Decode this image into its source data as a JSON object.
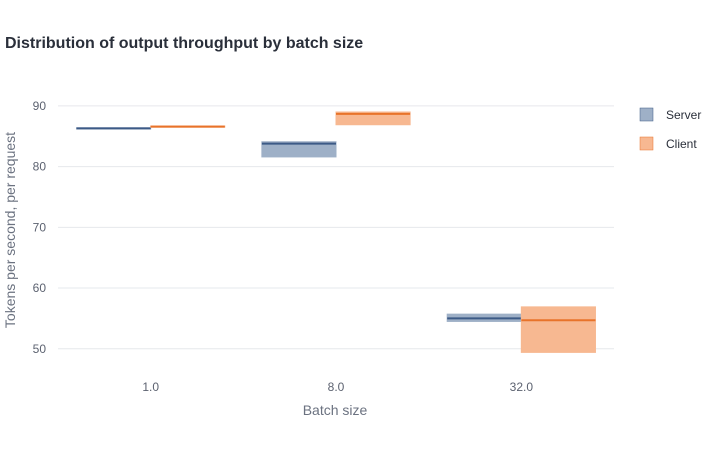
{
  "chart_data": {
    "type": "box",
    "title": "Distribution of output throughput by batch size",
    "xlabel": "Batch size",
    "ylabel": "Tokens per second, per request",
    "categories": [
      "1.0",
      "8.0",
      "32.0"
    ],
    "ylim": [
      46.5,
      94.6
    ],
    "yticks": [
      50,
      60,
      70,
      80,
      90
    ],
    "grid": true,
    "legend_position": "top-right",
    "series": [
      {
        "name": "Server",
        "color": "#3c5a86",
        "fill": "#9eb0c7",
        "boxes": [
          {
            "category": "1.0",
            "q1": 86.2,
            "median": 86.3,
            "q3": 86.4
          },
          {
            "category": "8.0",
            "q1": 81.6,
            "median": 83.8,
            "q3": 84.1
          },
          {
            "category": "32.0",
            "q1": 54.5,
            "median": 55.0,
            "q3": 55.7
          }
        ]
      },
      {
        "name": "Client",
        "color": "#e8732a",
        "fill": "#f7b891",
        "boxes": [
          {
            "category": "1.0",
            "q1": 86.5,
            "median": 86.6,
            "q3": 86.7
          },
          {
            "category": "8.0",
            "q1": 86.9,
            "median": 88.7,
            "q3": 89.0
          },
          {
            "category": "32.0",
            "q1": 49.4,
            "median": 54.7,
            "q3": 56.9
          }
        ]
      }
    ]
  }
}
